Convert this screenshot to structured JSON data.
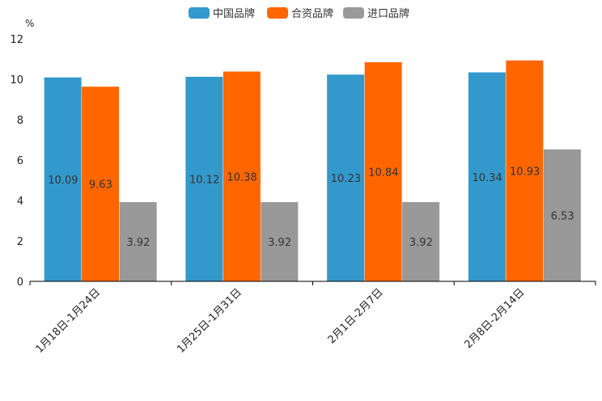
{
  "chart_data": {
    "type": "bar",
    "title": "",
    "xlabel": "",
    "ylabel": "%",
    "ylim": [
      0,
      12
    ],
    "yticks": [
      0,
      2,
      4,
      6,
      8,
      10,
      12
    ],
    "grid": false,
    "legend_position": "top-center",
    "categories": [
      "1月18日-1月24日",
      "1月25日-1月31日",
      "2月1日-2月7日",
      "2月8日-2月14日"
    ],
    "series": [
      {
        "name": "中国品牌",
        "color": "#3399cc",
        "values": [
          10.09,
          10.12,
          10.23,
          10.34
        ]
      },
      {
        "name": "合资品牌",
        "color": "#ff6600",
        "values": [
          9.63,
          10.38,
          10.84,
          10.93
        ]
      },
      {
        "name": "进口品牌",
        "color": "#999999",
        "values": [
          3.92,
          3.92,
          3.92,
          6.53
        ]
      }
    ]
  }
}
